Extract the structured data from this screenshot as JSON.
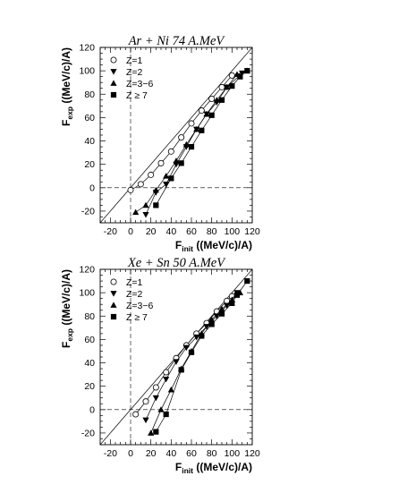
{
  "chart_data": [
    {
      "type": "scatter",
      "title": "Ar + Ni 74 A.MeV",
      "xlabel_main": "F",
      "xlabel_sub": "init",
      "xlabel_unit": " ((MeV/c)/A)",
      "ylabel_main": "F",
      "ylabel_sub": "exp",
      "ylabel_unit": " ((MeV/c)/A)",
      "xlim": [
        -30,
        120
      ],
      "ylim": [
        -30,
        120
      ],
      "xticks": [
        -20,
        0,
        20,
        40,
        60,
        80,
        100,
        120
      ],
      "yticks": [
        -20,
        0,
        20,
        40,
        60,
        80,
        100,
        120
      ],
      "reference_lines": {
        "diagonal": "y = x",
        "dashed_x": 0,
        "dashed_y": 0
      },
      "legend_placement": "top-left",
      "series": [
        {
          "name": "Z=1",
          "marker": "circle-open",
          "x": [
            0,
            10,
            20,
            30,
            40,
            50,
            60,
            70,
            80,
            90,
            100
          ],
          "y": [
            -2,
            3,
            11,
            21,
            31,
            43,
            55,
            66,
            76,
            86,
            96
          ]
        },
        {
          "name": "Z=2",
          "marker": "triangle-down",
          "x": [
            15,
            25,
            35,
            45,
            55,
            65,
            75,
            85,
            95,
            110
          ],
          "y": [
            -23,
            -4,
            3,
            20,
            35,
            50,
            63,
            73,
            86,
            98
          ]
        },
        {
          "name": "Z=3−6",
          "marker": "triangle-up",
          "x": [
            5,
            15,
            25,
            35,
            45,
            55,
            65,
            75,
            85,
            95,
            105,
            115
          ],
          "y": [
            -21,
            -15,
            -2,
            10,
            23,
            37,
            50,
            63,
            75,
            86,
            97,
            100
          ]
        },
        {
          "name": "Z ≥ 7",
          "marker": "square",
          "x": [
            25,
            40,
            50,
            60,
            70,
            80,
            90,
            100,
            108,
            115
          ],
          "y": [
            -15,
            8,
            21,
            35,
            49,
            62,
            75,
            87,
            95,
            100
          ]
        }
      ]
    },
    {
      "type": "scatter",
      "title": "Xe + Sn 50 A.MeV",
      "xlabel_main": "F",
      "xlabel_sub": "init",
      "xlabel_unit": " ((MeV/c)/A)",
      "ylabel_main": "F",
      "ylabel_sub": "exp",
      "ylabel_unit": " ((MeV/c)/A)",
      "xlim": [
        -30,
        120
      ],
      "ylim": [
        -30,
        120
      ],
      "xticks": [
        -20,
        0,
        20,
        40,
        60,
        80,
        100,
        120
      ],
      "yticks": [
        -20,
        0,
        20,
        40,
        60,
        80,
        100,
        120
      ],
      "reference_lines": {
        "diagonal": "y = x",
        "dashed_x": 0,
        "dashed_y": 0
      },
      "legend_placement": "top-left",
      "series": [
        {
          "name": "Z=1",
          "marker": "circle-open",
          "x": [
            5,
            15,
            25,
            35,
            45,
            55,
            65,
            75,
            85,
            95,
            100
          ],
          "y": [
            -4,
            7,
            19,
            32,
            44,
            55,
            65,
            74,
            84,
            93,
            97
          ]
        },
        {
          "name": "Z=2",
          "marker": "triangle-down",
          "x": [
            15,
            25,
            35,
            45,
            55,
            65,
            75,
            85,
            95,
            105
          ],
          "y": [
            -9,
            10,
            26,
            41,
            53,
            62,
            71,
            80,
            89,
            100
          ]
        },
        {
          "name": "Z=3−6",
          "marker": "triangle-up",
          "x": [
            20,
            30,
            40,
            50,
            60,
            70,
            80,
            90,
            100,
            108
          ],
          "y": [
            -20,
            0,
            17,
            35,
            50,
            65,
            77,
            86,
            94,
            100
          ]
        },
        {
          "name": "Z ≥ 7",
          "marker": "square",
          "x": [
            25,
            35,
            50,
            60,
            70,
            80,
            90,
            100,
            105,
            115
          ],
          "y": [
            -19,
            -4,
            34,
            49,
            63,
            73,
            82,
            91,
            98,
            110
          ]
        }
      ]
    }
  ]
}
